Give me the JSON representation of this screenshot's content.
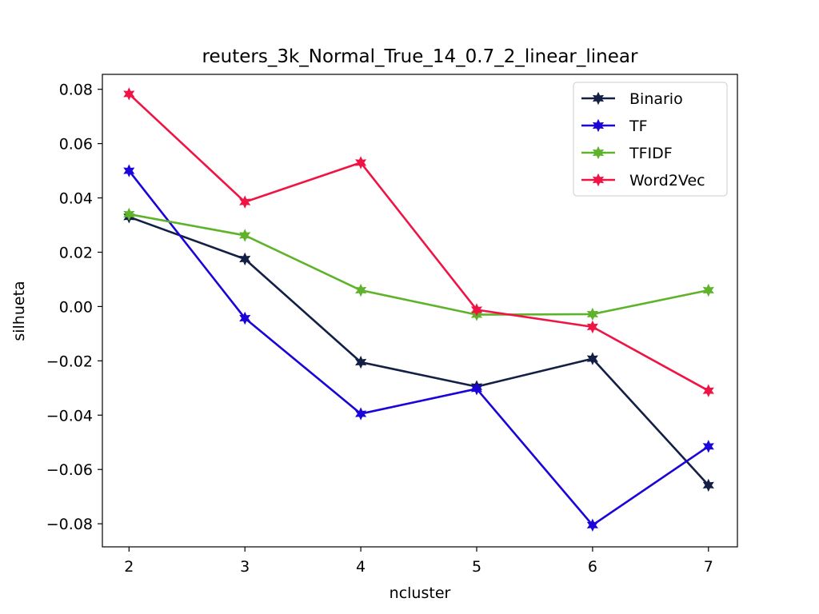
{
  "chart_data": {
    "type": "line",
    "title": "reuters_3k_Normal_True_14_0.7_2_linear_linear",
    "xlabel": "ncluster",
    "ylabel": "silhueta",
    "x": [
      2,
      3,
      4,
      5,
      6,
      7
    ],
    "xlim": [
      1.77,
      7.25
    ],
    "ylim": [
      -0.0885,
      0.0855
    ],
    "x_ticks": [
      2,
      3,
      4,
      5,
      6,
      7
    ],
    "x_tick_labels": [
      "2",
      "3",
      "4",
      "5",
      "6",
      "7"
    ],
    "y_ticks": [
      -0.08,
      -0.06,
      -0.04,
      -0.02,
      0.0,
      0.02,
      0.04,
      0.06,
      0.08
    ],
    "y_tick_labels": [
      "−0.08",
      "−0.06",
      "−0.04",
      "−0.02",
      "0.00",
      "0.02",
      "0.04",
      "0.06",
      "0.08"
    ],
    "grid": false,
    "legend_position": "top-right",
    "marker": "star",
    "series": [
      {
        "name": "Binario",
        "color": "#131f45",
        "values": [
          0.033,
          0.0175,
          -0.0205,
          -0.0295,
          -0.0192,
          -0.0658
        ]
      },
      {
        "name": "TF",
        "color": "#1a04d9",
        "values": [
          0.05,
          -0.0043,
          -0.0395,
          -0.0303,
          -0.0805,
          -0.0515
        ]
      },
      {
        "name": "TFIDF",
        "color": "#5fb32a",
        "values": [
          0.034,
          0.0262,
          0.006,
          -0.003,
          -0.0028,
          0.006
        ]
      },
      {
        "name": "Word2Vec",
        "color": "#ef1444",
        "values": [
          0.0783,
          0.0385,
          0.053,
          -0.0012,
          -0.0075,
          -0.031
        ]
      }
    ]
  }
}
